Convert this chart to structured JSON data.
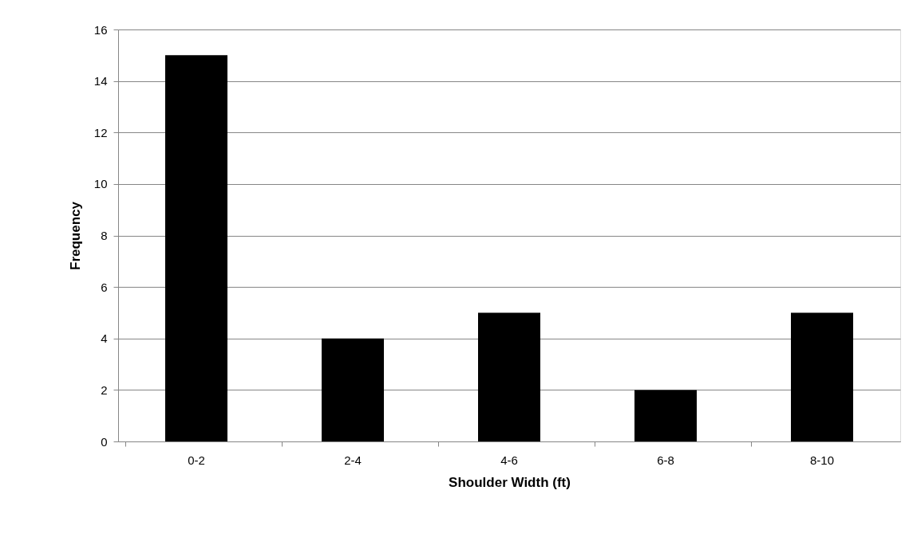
{
  "chart_data": {
    "type": "bar",
    "xlabel": "Shoulder Width (ft)",
    "ylabel": "Frequency",
    "categories": [
      "0-2",
      "2-4",
      "4-6",
      "6-8",
      "8-10"
    ],
    "values": [
      15,
      4,
      5,
      2,
      5
    ],
    "color": "#000000",
    "ylim": [
      0,
      16
    ],
    "yticks": [
      0,
      2,
      4,
      6,
      8,
      10,
      12,
      14,
      16
    ],
    "grid": "y"
  }
}
